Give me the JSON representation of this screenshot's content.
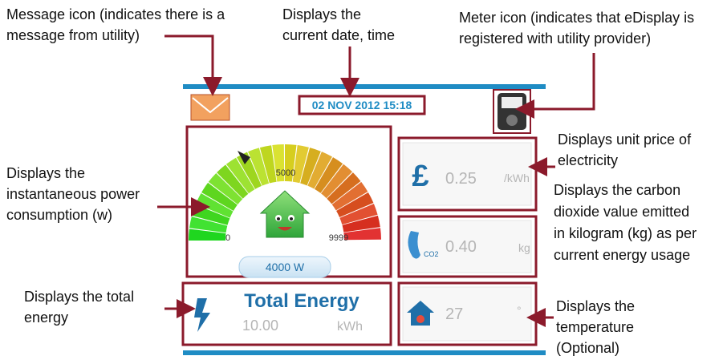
{
  "screen": {
    "date_time": "02 NOV 2012  15:18",
    "gauge_mid": "5000",
    "gauge_min": "0",
    "gauge_max": "9999",
    "power": "4000  W",
    "price": "0.25",
    "price_unit": "/kWh",
    "co2_icon": "CO2",
    "carbon": "0.40",
    "carbon_unit": "kg",
    "temperature": "27",
    "temperature_unit": "°",
    "total_energy_title": "Total Energy",
    "total_energy": "10.00",
    "total_energy_unit": "kWh"
  },
  "annotations": {
    "message_icon": [
      "Message icon (indicates there is a",
      "message from utility)"
    ],
    "date_time": [
      "Displays the",
      "current date, time"
    ],
    "meter_icon": [
      "Meter icon (indicates that eDisplay is",
      "registered with utility provider)"
    ],
    "unit_price": [
      "Displays unit price of",
      "electricity"
    ],
    "power": [
      "Displays the",
      "instantaneous power",
      "consumption (w)"
    ],
    "carbon": [
      "Displays the carbon",
      "dioxide value emitted",
      "in kilogram (kg) as per",
      "current energy usage"
    ],
    "total_energy": [
      "Displays the total",
      "energy"
    ],
    "temperature": [
      "Displays the",
      "temperature",
      "(Optional)"
    ]
  }
}
